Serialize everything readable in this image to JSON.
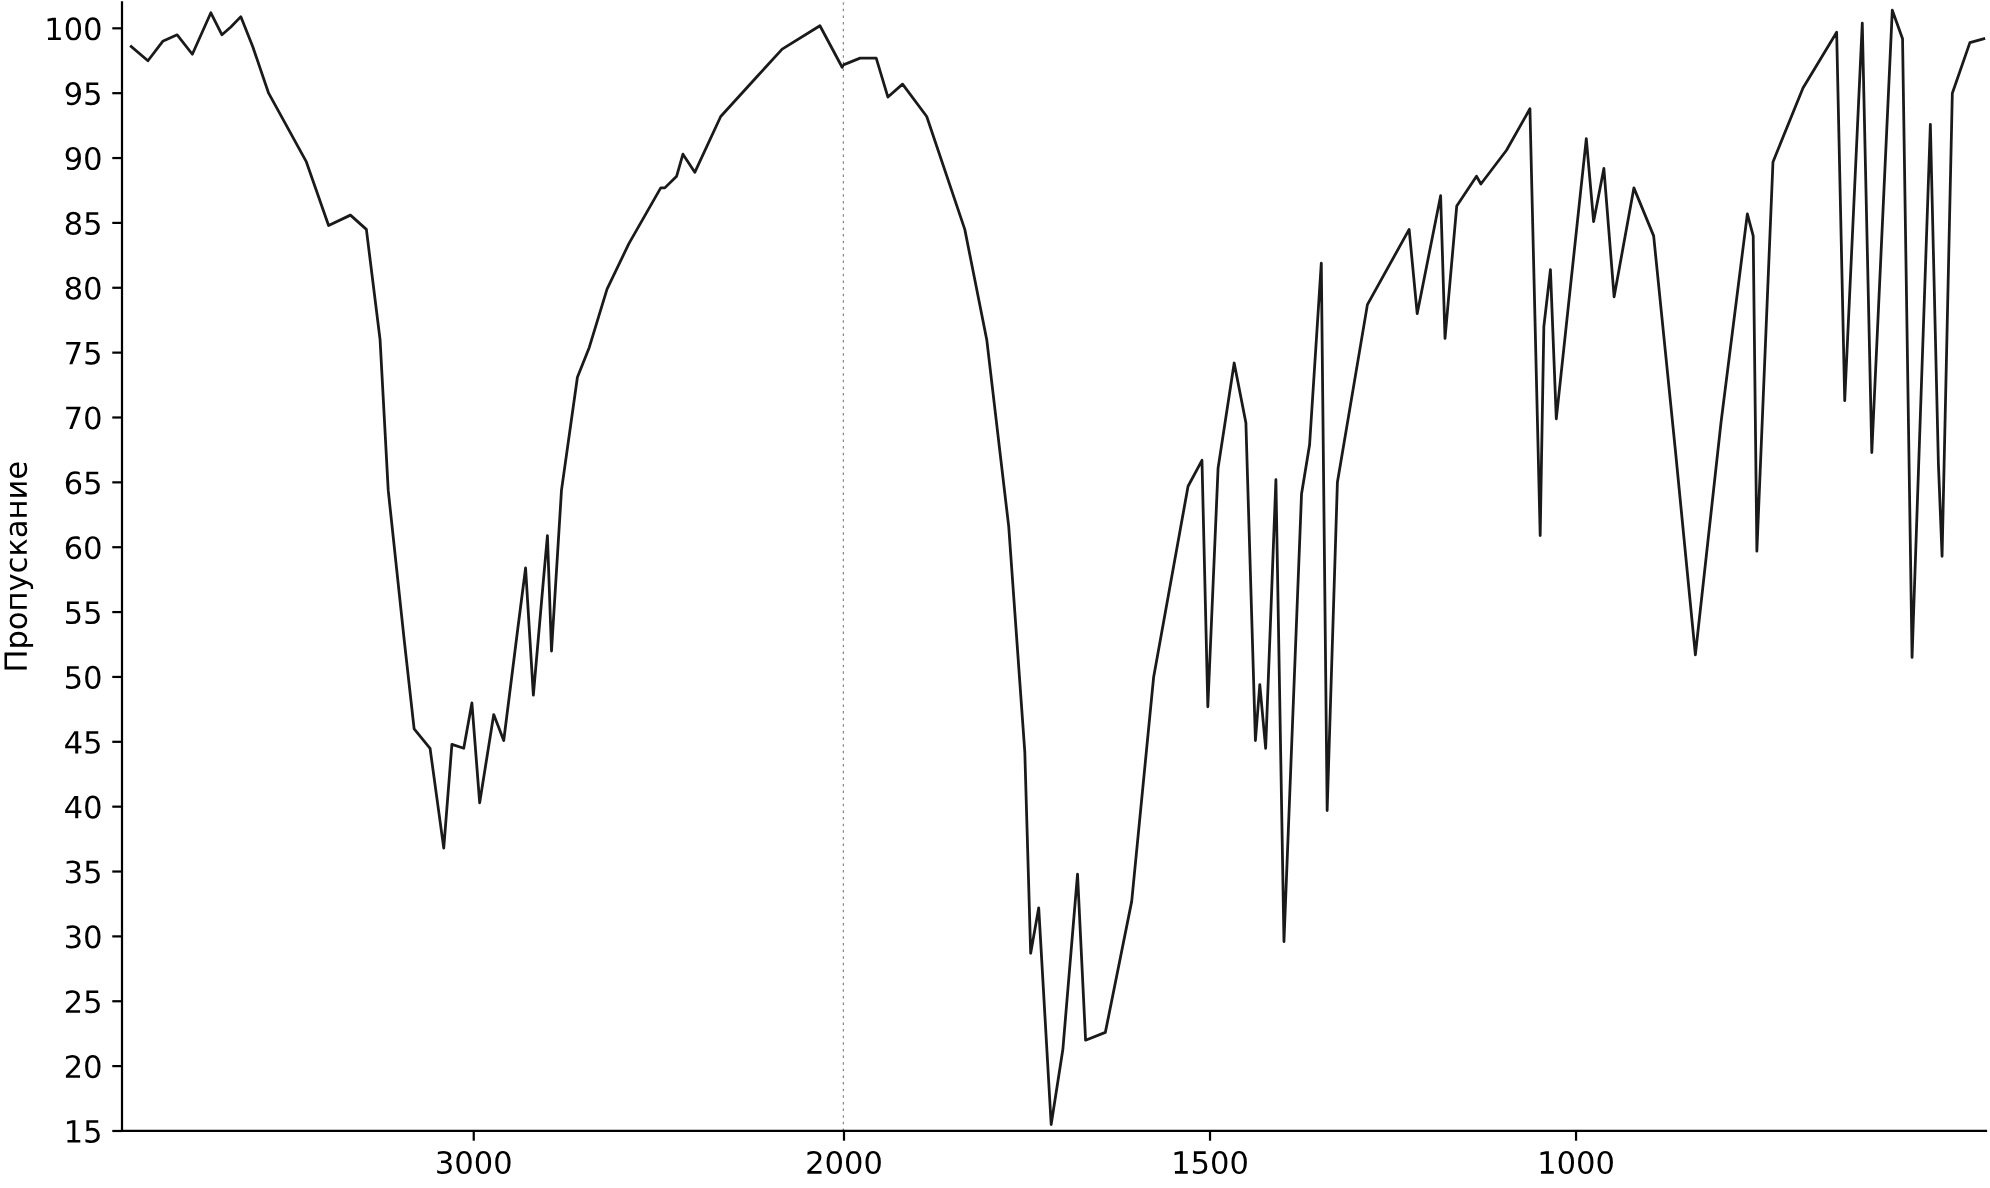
{
  "chart_data": [
    {
      "type": "line",
      "ylabel": "Пропускание",
      "x": [
        3925,
        3880,
        3840,
        3801,
        3760,
        3710,
        3680,
        3656,
        3629,
        3597,
        3554,
        3452,
        3392,
        3333,
        3290,
        3253,
        3231,
        3188,
        3161,
        3118,
        3081,
        3059,
        3027,
        3005,
        2984,
        2946,
        2919,
        2882,
        2860,
        2839,
        2812,
        2801,
        2790,
        2763,
        2720,
        2688,
        2640,
        2581,
        2495,
        2484,
        2452,
        2435,
        2403,
        2333,
        2231,
        2167,
        2065,
        2005,
        2000
      ],
      "values": [
        98.6,
        97.5,
        99,
        99.5,
        98,
        101.2,
        99.5,
        100.1,
        100.9,
        98.6,
        95,
        89.7,
        84.8,
        85.6,
        84.5,
        76,
        64.4,
        52.9,
        46,
        44.5,
        36.8,
        44.8,
        44.5,
        48,
        40.3,
        47.1,
        45.1,
        53.5,
        58.4,
        48.6,
        57.4,
        60.9,
        52,
        64.4,
        73.1,
        75.4,
        79.9,
        83.4,
        87.7,
        87.7,
        88.6,
        90.3,
        88.9,
        93.2,
        96.4,
        98.4,
        100.2,
        97,
        97.2
      ],
      "color": "#1a1a1a",
      "line_style": "solid",
      "marker": "none",
      "xlim": [
        3950,
        2000
      ],
      "xticks": [
        3000,
        2000
      ],
      "ylim": [
        15,
        102
      ],
      "yticks": [
        15,
        20,
        25,
        30,
        35,
        40,
        45,
        50,
        55,
        60,
        65,
        70,
        75,
        80,
        85,
        90,
        95,
        100
      ],
      "ref_lines": [
        {
          "axis": "x",
          "value": 2000,
          "color": "#888888",
          "line_style": "dotted"
        }
      ],
      "grid": false,
      "legend": false
    },
    {
      "type": "line",
      "x": [
        2000,
        1978,
        1956,
        1940,
        1920,
        1887,
        1835,
        1805,
        1775,
        1753,
        1745,
        1734,
        1717,
        1701,
        1681,
        1670,
        1643,
        1607,
        1577,
        1530,
        1511,
        1503,
        1489,
        1467,
        1451,
        1438,
        1432,
        1424,
        1410,
        1399,
        1375,
        1364,
        1348,
        1340,
        1326,
        1285,
        1228,
        1217,
        1185,
        1179,
        1163,
        1136,
        1130,
        1095,
        1063,
        1049,
        1044,
        1035,
        1027,
        986,
        976,
        962,
        948,
        921,
        894,
        864,
        837,
        802,
        766,
        758,
        753,
        731,
        690,
        644,
        633,
        609,
        596,
        568,
        554,
        541,
        516,
        505,
        500,
        486,
        462,
        443
      ],
      "values": [
        97.2,
        97.7,
        97.7,
        94.7,
        95.7,
        93.2,
        84.5,
        76,
        61.6,
        44.2,
        28.7,
        32.2,
        15.5,
        21.3,
        34.8,
        22,
        22.6,
        32.7,
        50,
        64.7,
        66.7,
        47.7,
        66.1,
        74.2,
        69.6,
        45.1,
        49.4,
        44.5,
        65.2,
        29.6,
        64.1,
        67.9,
        81.9,
        39.7,
        65,
        78.7,
        84.5,
        78,
        87.1,
        76.1,
        86.3,
        88.6,
        88,
        90.6,
        93.8,
        60.9,
        77,
        81.4,
        69.9,
        91.5,
        85.1,
        89.2,
        79.3,
        87.7,
        84,
        67.3,
        51.7,
        69.6,
        85.7,
        84,
        59.7,
        89.7,
        95.4,
        99.7,
        71.3,
        100.4,
        67.3,
        101.4,
        99.2,
        51.5,
        92.6,
        66.4,
        59.3,
        95,
        98.9,
        99.2
      ],
      "color": "#1a1a1a",
      "line_style": "solid",
      "marker": "none",
      "xlim": [
        2000,
        440
      ],
      "xticks": [
        1500,
        1000
      ],
      "ylim": [
        15,
        102
      ],
      "tick_labels": "x",
      "grid": false,
      "legend": false
    }
  ]
}
